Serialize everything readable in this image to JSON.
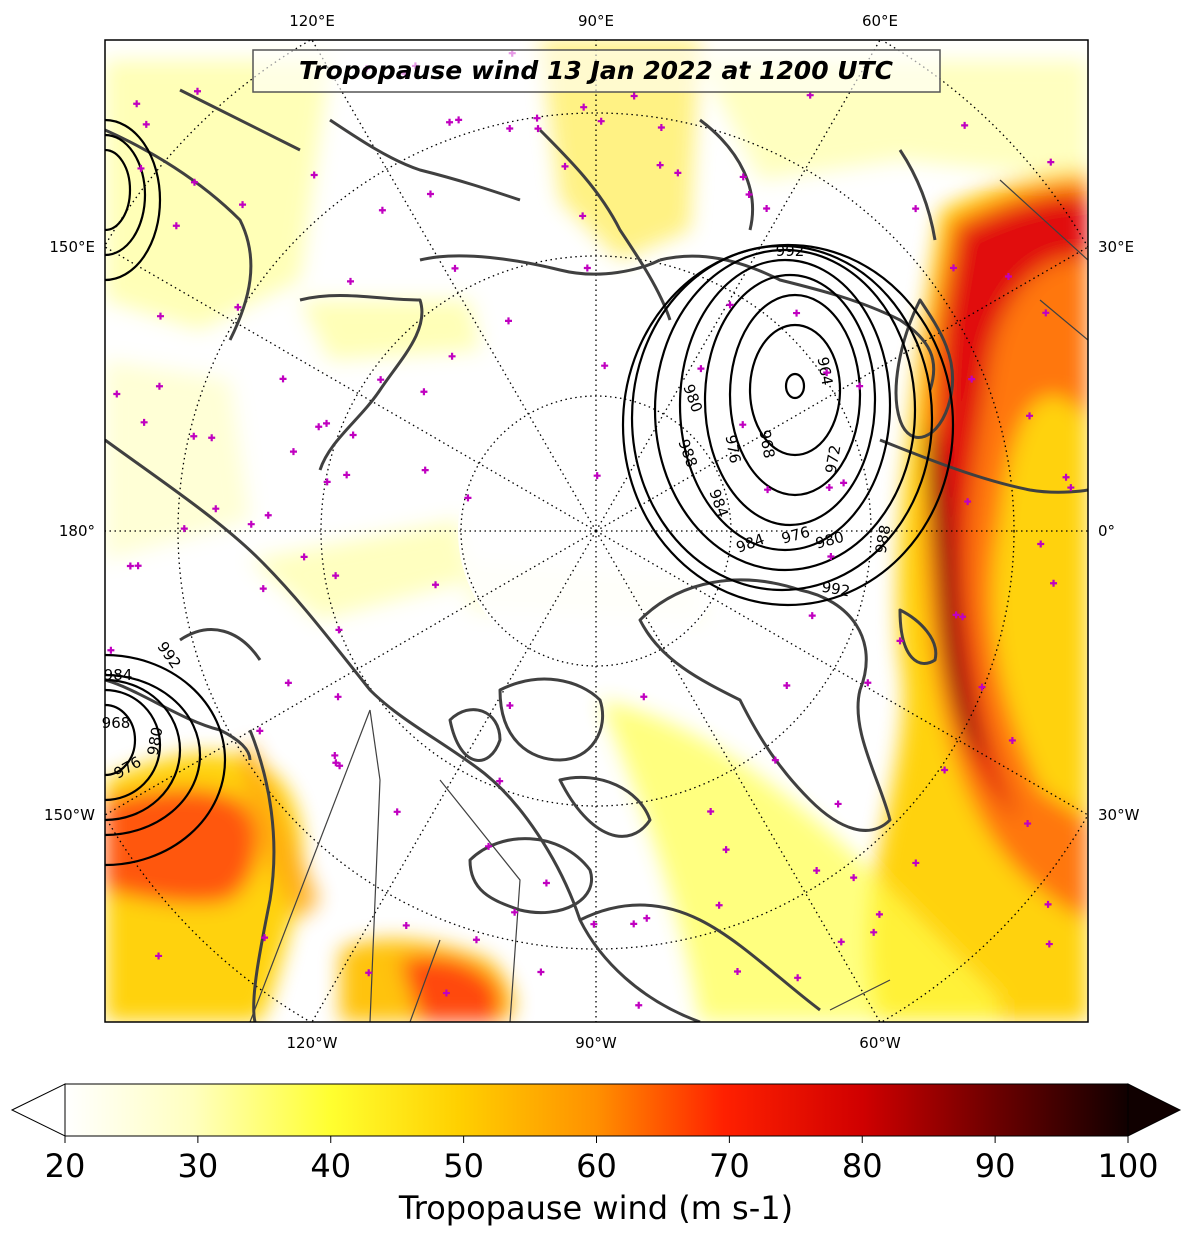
{
  "title": "Tropopause wind 13 Jan 2022 at 1200 UTC",
  "map": {
    "lon_labels_top": [
      "120°E",
      "90°E",
      "60°E"
    ],
    "lon_labels_bottom": [
      "120°W",
      "90°W",
      "60°W"
    ],
    "lon_labels_left": [
      "150°E",
      "180°",
      "150°W"
    ],
    "lon_labels_right": [
      "30°E",
      "0°",
      "30°W"
    ],
    "contour_labels": [
      "992",
      "964",
      "980",
      "988",
      "976",
      "968",
      "972",
      "984",
      "984",
      "976",
      "980",
      "988",
      "992",
      "992",
      "984",
      "968",
      "980",
      "976"
    ],
    "colors": {
      "contour": "#000000",
      "coastline": "#404040",
      "marker": "#c000c0"
    }
  },
  "colorbar": {
    "label": "Tropopause wind (m s-1)",
    "ticks": [
      "20",
      "30",
      "40",
      "50",
      "60",
      "70",
      "80",
      "90",
      "100"
    ],
    "min": 20,
    "max": 100,
    "colors": [
      "#ffffff",
      "#ffffb0",
      "#ffff40",
      "#ffd000",
      "#ff9000",
      "#ff3000",
      "#e00000",
      "#a00000",
      "#600000",
      "#100000"
    ]
  }
}
